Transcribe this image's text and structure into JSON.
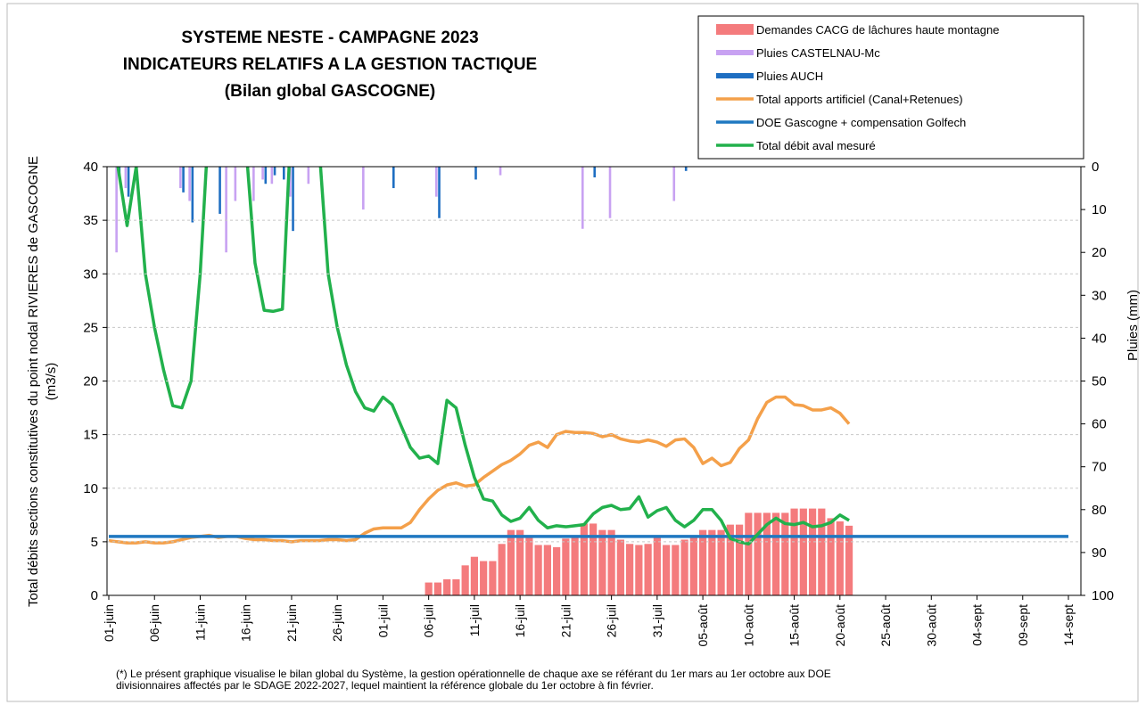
{
  "chart_data": {
    "type": "combo",
    "title": [
      "SYSTEME NESTE - CAMPAGNE 2023",
      "INDICATEURS RELATIFS A LA GESTION TACTIQUE",
      "(Bilan global GASCOGNE)"
    ],
    "y_label": [
      "Total débits sections constitutives du point nodal RIVIERES de GASCOGNE",
      "(m3/s)"
    ],
    "y2_label": "Pluies (mm)",
    "footnote": [
      "(*) Le présent graphique visualise le bilan global du Système, la gestion opérationnelle de chaque axe se référant du 1er mars au 1er octobre aux DOE",
      "divisionnaires affectés par le SDAGE 2022-2027, lequel maintient la référence globale du 1er octobre à fin février."
    ],
    "categories": [
      "01-juin",
      null,
      null,
      null,
      null,
      "06-juin",
      null,
      null,
      null,
      null,
      "11-juin",
      null,
      null,
      null,
      null,
      "16-juin",
      null,
      null,
      null,
      null,
      "21-juin",
      null,
      null,
      null,
      null,
      "26-juin",
      null,
      null,
      null,
      null,
      "01-juil",
      null,
      null,
      null,
      null,
      "06-juil",
      null,
      null,
      null,
      null,
      "11-juil",
      null,
      null,
      null,
      null,
      "16-juil",
      null,
      null,
      null,
      null,
      "21-juil",
      null,
      null,
      null,
      null,
      "26-juil",
      null,
      null,
      null,
      null,
      "31-juil",
      null,
      null,
      null,
      null,
      "05-août",
      null,
      null,
      null,
      null,
      "10-août",
      null,
      null,
      null,
      null,
      "15-août",
      null,
      null,
      null,
      null,
      "20-août",
      null,
      null,
      null,
      null,
      "25-août",
      null,
      null,
      null,
      null,
      "30-août",
      null,
      null,
      null,
      null,
      "04-sept",
      null,
      null,
      null,
      null,
      "09-sept",
      null,
      null,
      null,
      null,
      "14-sept"
    ],
    "ylim": [
      0,
      40
    ],
    "yticks": [
      0,
      5,
      10,
      15,
      20,
      25,
      30,
      35,
      40
    ],
    "y2lim": [
      100,
      0
    ],
    "y2ticks": [
      0,
      10,
      20,
      30,
      40,
      50,
      60,
      70,
      80,
      90,
      100
    ],
    "grid": true,
    "legend": "top-right",
    "series": [
      {
        "name": "Demandes CACG de lâchures haute montagne",
        "type": "bar",
        "color": "#f47b7d",
        "values": [
          null,
          null,
          null,
          null,
          null,
          null,
          null,
          null,
          null,
          null,
          null,
          null,
          null,
          null,
          null,
          null,
          null,
          null,
          null,
          null,
          null,
          null,
          null,
          null,
          null,
          null,
          null,
          null,
          null,
          null,
          null,
          null,
          null,
          null,
          null,
          1.2,
          1.2,
          1.5,
          1.5,
          2.8,
          3.6,
          3.2,
          3.2,
          4.8,
          6.1,
          6.1,
          5.6,
          4.7,
          4.7,
          4.5,
          5.3,
          5.6,
          6.7,
          6.7,
          6.1,
          6.1,
          5.2,
          4.8,
          4.7,
          4.8,
          5.6,
          4.7,
          4.7,
          5.2,
          5.6,
          6.1,
          6.1,
          6.1,
          6.6,
          6.6,
          7.7,
          7.7,
          7.7,
          7.7,
          7.7,
          8.1,
          8.1,
          8.1,
          8.1,
          7.2,
          6.9,
          6.5,
          null,
          null,
          null,
          null,
          null,
          null,
          null,
          null,
          null,
          null,
          null,
          null,
          null,
          null,
          null,
          null,
          null,
          null,
          null,
          null,
          null,
          null,
          null,
          null
        ]
      },
      {
        "name": "Pluies CASTELNAU-Mc",
        "type": "bar",
        "axis": "y2",
        "color": "#c8a2f2",
        "values": [
          0,
          20,
          5,
          0,
          0,
          0,
          0,
          0,
          5,
          8,
          0,
          0,
          0,
          20,
          8,
          0,
          8,
          3,
          4,
          0,
          7,
          0,
          4,
          0,
          0,
          0,
          0,
          0,
          10,
          0,
          0,
          0,
          0,
          0,
          0,
          0,
          7,
          0,
          0,
          0,
          0,
          0,
          0,
          2,
          0,
          0,
          0,
          0,
          0,
          0,
          0,
          0,
          14.5,
          0,
          0,
          12,
          0,
          0,
          0,
          0,
          0,
          0,
          8,
          0,
          0,
          0,
          0,
          0,
          0,
          0,
          0,
          0,
          0,
          0,
          0,
          0,
          0,
          0,
          0,
          0,
          0,
          0,
          null,
          null,
          null,
          null,
          null,
          null,
          null,
          null,
          null,
          null,
          null,
          null,
          null,
          null,
          null,
          null,
          null,
          null,
          null,
          null,
          null,
          null,
          null,
          null
        ]
      },
      {
        "name": "Pluies  AUCH",
        "type": "bar",
        "axis": "y2",
        "color": "#1e6ec2",
        "values": [
          0,
          2,
          7,
          0,
          0,
          0,
          0,
          0,
          6,
          13,
          0,
          0,
          11,
          0,
          0,
          0,
          0,
          4,
          2,
          3,
          15,
          0,
          0,
          0,
          0,
          0,
          0,
          0,
          0,
          0,
          0,
          5,
          0,
          0,
          0,
          0,
          12,
          0,
          0,
          0,
          3,
          0,
          0,
          0,
          0,
          0,
          0,
          0,
          0,
          0,
          0,
          0,
          0,
          2.5,
          0,
          0,
          0,
          0,
          0,
          0,
          0,
          0,
          0,
          1,
          0,
          0,
          0,
          0,
          0,
          0,
          0,
          0,
          0,
          0,
          0,
          0,
          0,
          0,
          0,
          0,
          0,
          0,
          null,
          null,
          null,
          null,
          null,
          null,
          null,
          null,
          null,
          null,
          null,
          null,
          null,
          null,
          null,
          null,
          null,
          null,
          null,
          null,
          null,
          null,
          null,
          null
        ]
      },
      {
        "name": "Total apports artificiel (Canal+Retenues)",
        "type": "line",
        "color": "#f4a04a",
        "values": [
          5.1,
          5,
          4.9,
          4.9,
          5,
          4.9,
          4.9,
          5,
          5.2,
          5.4,
          5.5,
          5.6,
          5.4,
          5.5,
          5.5,
          5.3,
          5.2,
          5.2,
          5.1,
          5.1,
          5,
          5.1,
          5.1,
          5.1,
          5.2,
          5.2,
          5.1,
          5.2,
          5.8,
          6.2,
          6.3,
          6.3,
          6.3,
          6.8,
          8,
          9,
          9.8,
          10.3,
          10.5,
          10.2,
          10.3,
          11,
          11.6,
          12.2,
          12.6,
          13.2,
          14,
          14.3,
          13.8,
          15,
          15.3,
          15.2,
          15.2,
          15.1,
          14.8,
          15,
          14.6,
          14.4,
          14.3,
          14.5,
          14.3,
          13.9,
          14.5,
          14.6,
          13.8,
          12.3,
          12.8,
          12.1,
          12.4,
          13.7,
          14.5,
          16.5,
          18,
          18.5,
          18.5,
          17.8,
          17.7,
          17.3,
          17.3,
          17.5,
          17,
          16,
          null,
          null,
          null,
          null,
          null,
          null,
          null,
          null,
          null,
          null,
          null,
          null,
          null,
          null,
          null,
          null,
          null,
          null,
          null,
          null,
          null,
          null,
          null,
          null
        ]
      },
      {
        "name": "DOE Gascogne + compensation Golfech",
        "type": "line",
        "color": "#1f78c1",
        "values": [
          5.5,
          5.5,
          5.5,
          5.5,
          5.5,
          5.5,
          5.5,
          5.5,
          5.5,
          5.5,
          5.5,
          5.5,
          5.5,
          5.5,
          5.5,
          5.5,
          5.5,
          5.5,
          5.5,
          5.5,
          5.5,
          5.5,
          5.5,
          5.5,
          5.5,
          5.5,
          5.5,
          5.5,
          5.5,
          5.5,
          5.5,
          5.5,
          5.5,
          5.5,
          5.5,
          5.5,
          5.5,
          5.5,
          5.5,
          5.5,
          5.5,
          5.5,
          5.5,
          5.5,
          5.5,
          5.5,
          5.5,
          5.5,
          5.5,
          5.5,
          5.5,
          5.5,
          5.5,
          5.5,
          5.5,
          5.5,
          5.5,
          5.5,
          5.5,
          5.5,
          5.5,
          5.5,
          5.5,
          5.5,
          5.5,
          5.5,
          5.5,
          5.5,
          5.5,
          5.5,
          5.5,
          5.5,
          5.5,
          5.5,
          5.5,
          5.5,
          5.5,
          5.5,
          5.5,
          5.5,
          5.5,
          5.5,
          5.5,
          5.5,
          5.5,
          5.5,
          5.5,
          5.5,
          5.5,
          5.5,
          5.5,
          5.5,
          5.5,
          5.5,
          5.5,
          5.5,
          5.5,
          5.5,
          5.5,
          5.5,
          5.5,
          5.5,
          5.5,
          5.5,
          5.5,
          5.5
        ]
      },
      {
        "name": "Total débit aval mesuré",
        "type": "line",
        "color": "#22b14c",
        "values": [
          45,
          40,
          34.5,
          40,
          30,
          25,
          21,
          17.7,
          17.5,
          20,
          30,
          45,
          45,
          45,
          45,
          42,
          31,
          26.6,
          26.5,
          26.7,
          45,
          45,
          45,
          42,
          30,
          25,
          21.5,
          19,
          17.5,
          17.2,
          18.5,
          17.8,
          15.8,
          13.8,
          12.8,
          13,
          12.3,
          18.2,
          17.5,
          14,
          11,
          9,
          8.8,
          7.5,
          6.9,
          7.2,
          8.2,
          7,
          6.3,
          6.5,
          6.4,
          6.5,
          6.6,
          7.6,
          8.2,
          8.4,
          8,
          8.1,
          9.2,
          7.3,
          7.9,
          8.2,
          7,
          6.4,
          7,
          8,
          8,
          7,
          5.3,
          5,
          4.8,
          5.7,
          6.6,
          7.2,
          6.7,
          6.6,
          6.8,
          6.4,
          6.5,
          6.8,
          7.5,
          7,
          null,
          null,
          null,
          null,
          null,
          null,
          null,
          null,
          null,
          null,
          null,
          null,
          null,
          null,
          null,
          null,
          null,
          null,
          null,
          null,
          null,
          null,
          null,
          null
        ]
      }
    ]
  }
}
